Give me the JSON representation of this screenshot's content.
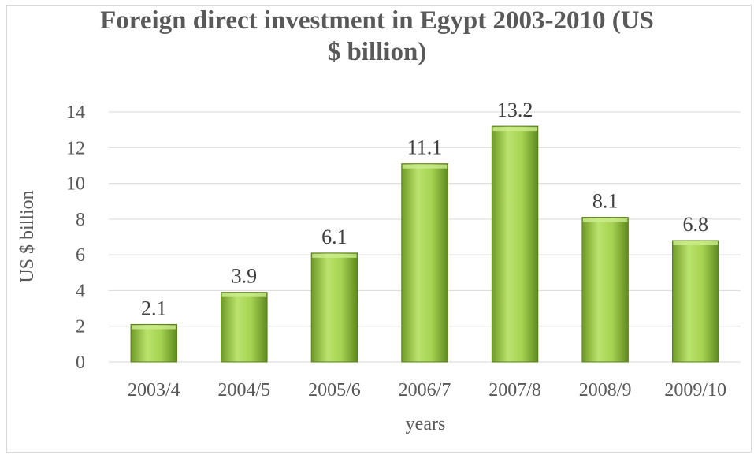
{
  "chart_data": {
    "type": "bar",
    "title_lines": [
      "Foreign direct investment in Egypt 2003-2010 (US",
      "$ billion)"
    ],
    "title": "Foreign direct investment in Egypt 2003-2010 (US $ billion)",
    "xlabel": "years",
    "ylabel": "US $ billion",
    "categories": [
      "2003/4",
      "2004/5",
      "2005/6",
      "2006/7",
      "2007/8",
      "2008/9",
      "2009/10"
    ],
    "values": [
      2.1,
      3.9,
      6.1,
      11.1,
      13.2,
      8.1,
      6.8
    ],
    "data_labels": [
      "2.1",
      "3.9",
      "6.1",
      "11.1",
      "13.2",
      "8.1",
      "6.8"
    ],
    "ylim": [
      0,
      14
    ],
    "yticks": [
      0,
      2,
      4,
      6,
      8,
      10,
      12,
      14
    ],
    "grid": true,
    "legend": "none",
    "colors": {
      "bar_light": "#b7e16a",
      "bar_mid": "#8fbf3c",
      "bar_dark": "#5f8a1f",
      "grid": "#d9d9d9",
      "text": "#595959"
    }
  }
}
